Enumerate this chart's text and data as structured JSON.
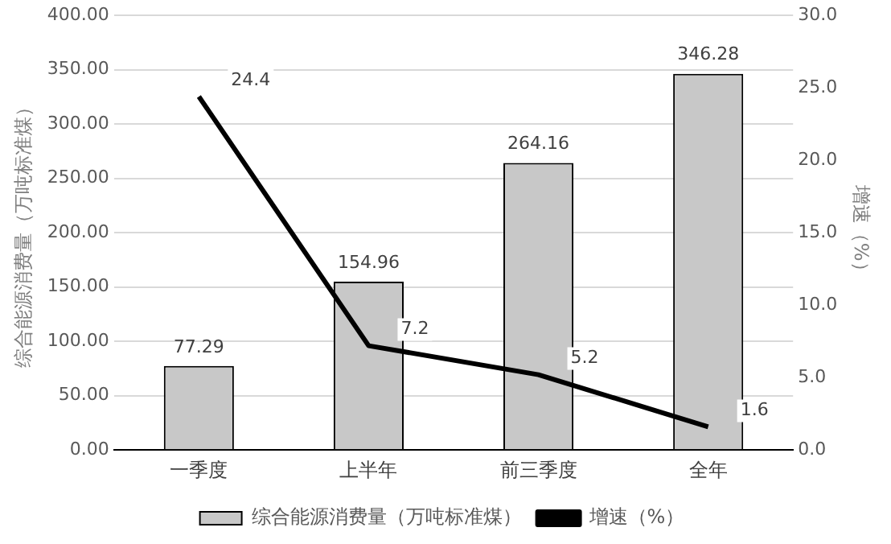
{
  "chart_data": {
    "type": "bar",
    "categories": [
      "一季度",
      "上半年",
      "前三季度",
      "全年"
    ],
    "ylabel": "综合能源消费量（万吨标准煤）",
    "y2label": "增速（%）",
    "series": [
      {
        "name": "综合能源消费量（万吨标准煤）",
        "color": "#c8c8c8",
        "values": [
          77.29,
          154.96,
          264.16,
          346.28
        ]
      },
      {
        "name": "增速（%）",
        "type": "line",
        "axis": "y2",
        "color": "#000000",
        "values": [
          24.4,
          7.2,
          5.2,
          1.6
        ]
      }
    ],
    "ylim": [
      0,
      400
    ],
    "yticks": [
      {
        "value": 0,
        "label": "0.00"
      },
      {
        "value": 50,
        "label": "50.00"
      },
      {
        "value": 100,
        "label": "100.00"
      },
      {
        "value": 150,
        "label": "150.00"
      },
      {
        "value": 200,
        "label": "200.00"
      },
      {
        "value": 250,
        "label": "250.00"
      },
      {
        "value": 300,
        "label": "300.00"
      },
      {
        "value": 350,
        "label": "350.00"
      },
      {
        "value": 400,
        "label": "400.00"
      }
    ],
    "y2lim": [
      0,
      30
    ],
    "y2ticks": [
      {
        "value": 0,
        "label": "0.0"
      },
      {
        "value": 5,
        "label": "5.0"
      },
      {
        "value": 10,
        "label": "10.0"
      },
      {
        "value": 15,
        "label": "15.0"
      },
      {
        "value": 20,
        "label": "20.0"
      },
      {
        "value": 25,
        "label": "25.0"
      },
      {
        "value": 30,
        "label": "30.0"
      }
    ],
    "grid": "y",
    "legend": "bottom",
    "data_labels": true,
    "marker": "none"
  }
}
